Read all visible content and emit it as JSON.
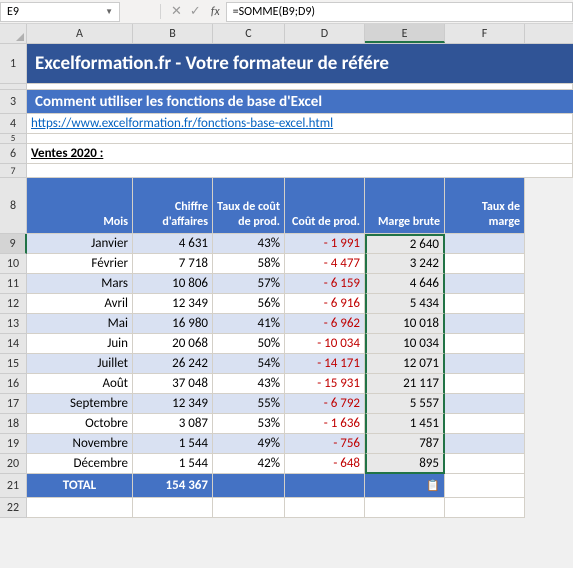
{
  "name_box": "E9",
  "formula": "=SOMME(B9;D9)",
  "fx_label": "fx",
  "col_headers": [
    "A",
    "B",
    "C",
    "D",
    "E",
    "F"
  ],
  "active_col": "E",
  "title": "Excelformation.fr - Votre formateur de référe",
  "subtitle": "Comment utiliser les fonctions de base d'Excel",
  "link_text": "https://www.excelformation.fr/fonctions-base-excel.html",
  "section_label": "Ventes 2020 :",
  "table_headers": {
    "a": "Mois",
    "b": "Chiffre d'affaires",
    "c": "Taux de coût de prod.",
    "d": "Coût de prod.",
    "e": "Marge brute",
    "f": "Taux de marge"
  },
  "rows": [
    {
      "n": 9,
      "m": "Janvier",
      "ca": "4 631",
      "tx": "43%",
      "cp": "- 1 991",
      "mb": "2 640"
    },
    {
      "n": 10,
      "m": "Février",
      "ca": "7 718",
      "tx": "58%",
      "cp": "- 4 477",
      "mb": "3 242"
    },
    {
      "n": 11,
      "m": "Mars",
      "ca": "10 806",
      "tx": "57%",
      "cp": "- 6 159",
      "mb": "4 646"
    },
    {
      "n": 12,
      "m": "Avril",
      "ca": "12 349",
      "tx": "56%",
      "cp": "- 6 916",
      "mb": "5 434"
    },
    {
      "n": 13,
      "m": "Mai",
      "ca": "16 980",
      "tx": "41%",
      "cp": "- 6 962",
      "mb": "10 018"
    },
    {
      "n": 14,
      "m": "Juin",
      "ca": "20 068",
      "tx": "50%",
      "cp": "- 10 034",
      "mb": "10 034"
    },
    {
      "n": 15,
      "m": "Juillet",
      "ca": "26 242",
      "tx": "54%",
      "cp": "- 14 171",
      "mb": "12 071"
    },
    {
      "n": 16,
      "m": "Août",
      "ca": "37 048",
      "tx": "43%",
      "cp": "- 15 931",
      "mb": "21 117"
    },
    {
      "n": 17,
      "m": "Septembre",
      "ca": "12 349",
      "tx": "55%",
      "cp": "- 6 792",
      "mb": "5 557"
    },
    {
      "n": 18,
      "m": "Octobre",
      "ca": "3 087",
      "tx": "53%",
      "cp": "- 1 636",
      "mb": "1 451"
    },
    {
      "n": 19,
      "m": "Novembre",
      "ca": "1 544",
      "tx": "49%",
      "cp": "- 756",
      "mb": "787"
    },
    {
      "n": 20,
      "m": "Décembre",
      "ca": "1 544",
      "tx": "42%",
      "cp": "- 648",
      "mb": "895"
    }
  ],
  "total_label": "TOTAL",
  "total_value": "154 367",
  "colors": {
    "header_blue": "#4472c4",
    "title_blue": "#305496",
    "band": "#d9e1f2",
    "neg": "#c00000",
    "excel_green": "#217346"
  }
}
